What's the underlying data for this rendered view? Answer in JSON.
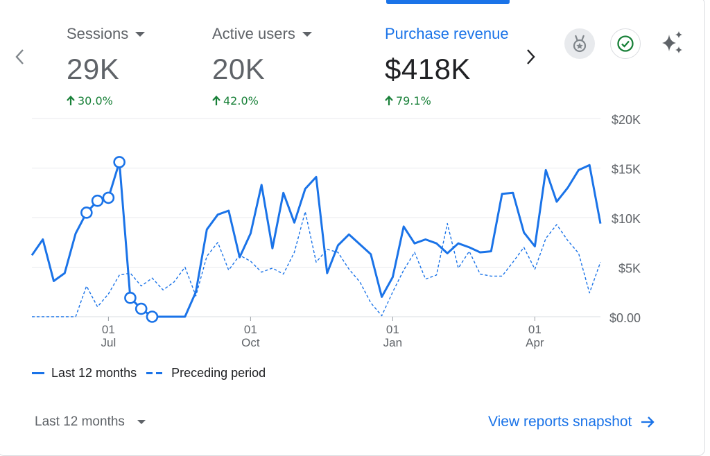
{
  "metrics": [
    {
      "label": "Sessions",
      "value": "29K",
      "change": "30.0%"
    },
    {
      "label": "Active users",
      "value": "20K",
      "change": "42.0%"
    },
    {
      "label": "Purchase revenue",
      "value": "$418K",
      "change": "79.1%"
    }
  ],
  "icons": {
    "nav_prev": "chevron-left-icon",
    "nav_next": "chevron-right-icon",
    "award": "award-badge-icon",
    "check": "check-circle-icon",
    "sparkle": "sparkle-icon",
    "arrow_up": "arrow-up-icon",
    "arrow_right": "arrow-right-icon"
  },
  "colors": {
    "accent": "#1a73e8",
    "positive": "#188038",
    "check": "#188038"
  },
  "legend": {
    "current": "Last 12 months",
    "previous": "Preceding period"
  },
  "footer": {
    "date_range": "Last 12 months",
    "view_link": "View reports snapshot"
  },
  "chart_data": {
    "type": "line",
    "y_ticks": [
      "$0.00",
      "$5K",
      "$10K",
      "$15K",
      "$20K"
    ],
    "ylim": [
      0,
      20000
    ],
    "x_ticks": [
      {
        "day": "01",
        "month": "Jul",
        "index": 7
      },
      {
        "day": "01",
        "month": "Oct",
        "index": 20
      },
      {
        "day": "01",
        "month": "Jan",
        "index": 33
      },
      {
        "day": "01",
        "month": "Apr",
        "index": 46
      }
    ],
    "grid": true,
    "legend_position": "bottom-left",
    "series": [
      {
        "name": "Last 12 months",
        "style": "solid",
        "values": [
          6200,
          7800,
          3600,
          4400,
          8400,
          10500,
          11700,
          12000,
          15600,
          1900,
          800,
          0,
          0,
          0,
          0,
          2500,
          8800,
          10300,
          10700,
          6000,
          8400,
          13300,
          6900,
          12500,
          9500,
          12900,
          14100,
          4400,
          7200,
          8300,
          7300,
          6300,
          2000,
          4000,
          9100,
          7400,
          7800,
          7400,
          6400,
          7400,
          7000,
          6500,
          6600,
          12400,
          12500,
          8500,
          7100,
          14800,
          11600,
          13000,
          14800,
          15300,
          9400
        ],
        "highlight_indices": [
          5,
          6,
          7,
          8,
          9,
          10,
          11
        ]
      },
      {
        "name": "Preceding period",
        "style": "dashed",
        "values": [
          0,
          0,
          0,
          0,
          0,
          3100,
          1000,
          2300,
          4200,
          4400,
          3100,
          3900,
          2700,
          3500,
          5000,
          2100,
          6100,
          7500,
          4700,
          6200,
          5600,
          4500,
          4900,
          4300,
          6500,
          10600,
          5500,
          6800,
          6500,
          4800,
          3500,
          1400,
          100,
          2500,
          4700,
          6500,
          3800,
          4200,
          9400,
          4900,
          6600,
          4300,
          4100,
          4100,
          5500,
          7000,
          4800,
          7900,
          9300,
          7700,
          6400,
          2400,
          5500
        ]
      }
    ]
  }
}
